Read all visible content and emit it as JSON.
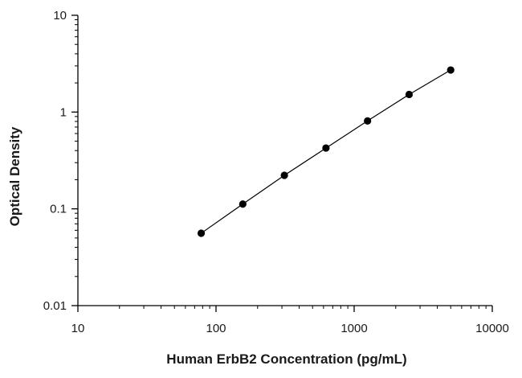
{
  "chart_data": {
    "type": "scatter",
    "title": "",
    "xlabel": "Human ErbB2 Concentration (pg/mL)",
    "ylabel": "Optical Density",
    "x_scale": "log",
    "y_scale": "log",
    "xlim": [
      10,
      10000
    ],
    "ylim": [
      0.01,
      10
    ],
    "x_ticks": [
      10,
      100,
      1000,
      10000
    ],
    "x_tick_labels": [
      "10",
      "100",
      "1000",
      "10000"
    ],
    "y_ticks": [
      0.01,
      0.1,
      1,
      10
    ],
    "y_tick_labels": [
      "0.01",
      "0.1",
      "1",
      "10"
    ],
    "grid": false,
    "legend": "none",
    "line_color": "#000000",
    "marker_color": "#000000",
    "series": [
      {
        "x": [
          78.1,
          156.25,
          312.5,
          625,
          1250,
          2500,
          5000
        ],
        "y": [
          0.056,
          0.112,
          0.222,
          0.425,
          0.81,
          1.52,
          2.72
        ]
      }
    ]
  }
}
